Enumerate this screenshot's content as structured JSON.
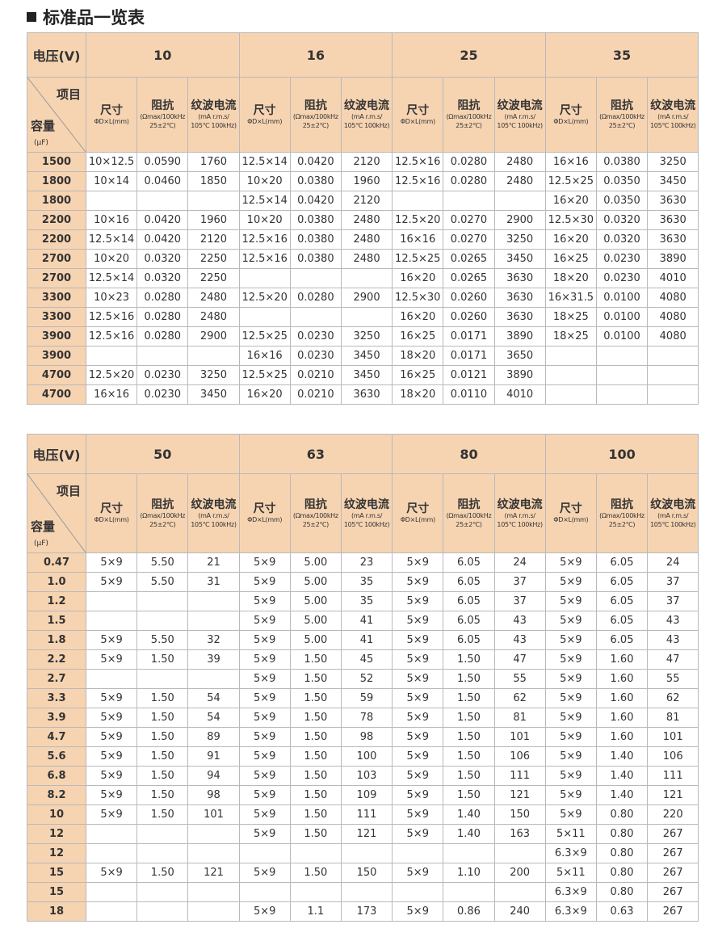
{
  "title": "标准品一览表",
  "colors": {
    "header_bg": "#f6d4b2",
    "border": "#b9b9b9"
  },
  "header": {
    "voltage_label": "电压(V)",
    "item_label": "项目",
    "capacity_label": "容量",
    "capacity_unit": "(μF)",
    "size_label": "尺寸",
    "size_unit": "ΦD×L(mm)",
    "impedance_label": "阻抗",
    "impedance_unit1": "(Ωmax/100kHz",
    "impedance_unit2": "25±2℃)",
    "ripple_label": "纹波电流",
    "ripple_unit1": "(mA r.m.s/",
    "ripple_unit2": "105℃ 100kHz)"
  },
  "tables": [
    {
      "voltages": [
        "10",
        "16",
        "25",
        "35"
      ],
      "rows": [
        [
          "1500",
          [
            "10×12.5",
            "0.0590",
            "1760",
            "12.5×14",
            "0.0420",
            "2120",
            "12.5×16",
            "0.0280",
            "2480",
            "16×16",
            "0.0380",
            "3250"
          ]
        ],
        [
          "1800",
          [
            "10×14",
            "0.0460",
            "1850",
            "10×20",
            "0.0380",
            "1960",
            "12.5×16",
            "0.0280",
            "2480",
            "12.5×25",
            "0.0350",
            "3450"
          ]
        ],
        [
          "1800",
          [
            "",
            "",
            "",
            "12.5×14",
            "0.0420",
            "2120",
            "",
            "",
            "",
            "16×20",
            "0.0350",
            "3630"
          ]
        ],
        [
          "2200",
          [
            "10×16",
            "0.0420",
            "1960",
            "10×20",
            "0.0380",
            "2480",
            "12.5×20",
            "0.0270",
            "2900",
            "12.5×30",
            "0.0320",
            "3630"
          ]
        ],
        [
          "2200",
          [
            "12.5×14",
            "0.0420",
            "2120",
            "12.5×16",
            "0.0380",
            "2480",
            "16×16",
            "0.0270",
            "3250",
            "16×20",
            "0.0320",
            "3630"
          ]
        ],
        [
          "2700",
          [
            "10×20",
            "0.0320",
            "2250",
            "12.5×16",
            "0.0380",
            "2480",
            "12.5×25",
            "0.0265",
            "3450",
            "16×25",
            "0.0230",
            "3890"
          ]
        ],
        [
          "2700",
          [
            "12.5×14",
            "0.0320",
            "2250",
            "",
            "",
            "",
            "16×20",
            "0.0265",
            "3630",
            "18×20",
            "0.0230",
            "4010"
          ]
        ],
        [
          "3300",
          [
            "10×23",
            "0.0280",
            "2480",
            "12.5×20",
            "0.0280",
            "2900",
            "12.5×30",
            "0.0260",
            "3630",
            "16×31.5",
            "0.0100",
            "4080"
          ]
        ],
        [
          "3300",
          [
            "12.5×16",
            "0.0280",
            "2480",
            "",
            "",
            "",
            "16×20",
            "0.0260",
            "3630",
            "18×25",
            "0.0100",
            "4080"
          ]
        ],
        [
          "3900",
          [
            "12.5×16",
            "0.0280",
            "2900",
            "12.5×25",
            "0.0230",
            "3250",
            "16×25",
            "0.0171",
            "3890",
            "18×25",
            "0.0100",
            "4080"
          ]
        ],
        [
          "3900",
          [
            "",
            "",
            "",
            "16×16",
            "0.0230",
            "3450",
            "18×20",
            "0.0171",
            "3650",
            "",
            "",
            ""
          ]
        ],
        [
          "4700",
          [
            "12.5×20",
            "0.0230",
            "3250",
            "12.5×25",
            "0.0210",
            "3450",
            "16×25",
            "0.0121",
            "3890",
            "",
            "",
            ""
          ]
        ],
        [
          "4700",
          [
            "16×16",
            "0.0230",
            "3450",
            "16×20",
            "0.0210",
            "3630",
            "18×20",
            "0.0110",
            "4010",
            "",
            "",
            ""
          ]
        ]
      ]
    },
    {
      "voltages": [
        "50",
        "63",
        "80",
        "100"
      ],
      "rows": [
        [
          "0.47",
          [
            "5×9",
            "5.50",
            "21",
            "5×9",
            "5.00",
            "23",
            "5×9",
            "6.05",
            "24",
            "5×9",
            "6.05",
            "24"
          ]
        ],
        [
          "1.0",
          [
            "5×9",
            "5.50",
            "31",
            "5×9",
            "5.00",
            "35",
            "5×9",
            "6.05",
            "37",
            "5×9",
            "6.05",
            "37"
          ]
        ],
        [
          "1.2",
          [
            "",
            "",
            "",
            "5×9",
            "5.00",
            "35",
            "5×9",
            "6.05",
            "37",
            "5×9",
            "6.05",
            "37"
          ]
        ],
        [
          "1.5",
          [
            "",
            "",
            "",
            "5×9",
            "5.00",
            "41",
            "5×9",
            "6.05",
            "43",
            "5×9",
            "6.05",
            "43"
          ]
        ],
        [
          "1.8",
          [
            "5×9",
            "5.50",
            "32",
            "5×9",
            "5.00",
            "41",
            "5×9",
            "6.05",
            "43",
            "5×9",
            "6.05",
            "43"
          ]
        ],
        [
          "2.2",
          [
            "5×9",
            "1.50",
            "39",
            "5×9",
            "1.50",
            "45",
            "5×9",
            "1.50",
            "47",
            "5×9",
            "1.60",
            "47"
          ]
        ],
        [
          "2.7",
          [
            "",
            "",
            "",
            "5×9",
            "1.50",
            "52",
            "5×9",
            "1.50",
            "55",
            "5×9",
            "1.60",
            "55"
          ]
        ],
        [
          "3.3",
          [
            "5×9",
            "1.50",
            "54",
            "5×9",
            "1.50",
            "59",
            "5×9",
            "1.50",
            "62",
            "5×9",
            "1.60",
            "62"
          ]
        ],
        [
          "3.9",
          [
            "5×9",
            "1.50",
            "54",
            "5×9",
            "1.50",
            "78",
            "5×9",
            "1.50",
            "81",
            "5×9",
            "1.60",
            "81"
          ]
        ],
        [
          "4.7",
          [
            "5×9",
            "1.50",
            "89",
            "5×9",
            "1.50",
            "98",
            "5×9",
            "1.50",
            "101",
            "5×9",
            "1.60",
            "101"
          ]
        ],
        [
          "5.6",
          [
            "5×9",
            "1.50",
            "91",
            "5×9",
            "1.50",
            "100",
            "5×9",
            "1.50",
            "106",
            "5×9",
            "1.40",
            "106"
          ]
        ],
        [
          "6.8",
          [
            "5×9",
            "1.50",
            "94",
            "5×9",
            "1.50",
            "103",
            "5×9",
            "1.50",
            "111",
            "5×9",
            "1.40",
            "111"
          ]
        ],
        [
          "8.2",
          [
            "5×9",
            "1.50",
            "98",
            "5×9",
            "1.50",
            "109",
            "5×9",
            "1.50",
            "121",
            "5×9",
            "1.40",
            "121"
          ]
        ],
        [
          "10",
          [
            "5×9",
            "1.50",
            "101",
            "5×9",
            "1.50",
            "111",
            "5×9",
            "1.40",
            "150",
            "5×9",
            "0.80",
            "220"
          ]
        ],
        [
          "12",
          [
            "",
            "",
            "",
            "5×9",
            "1.50",
            "121",
            "5×9",
            "1.40",
            "163",
            "5×11",
            "0.80",
            "267"
          ]
        ],
        [
          "12",
          [
            "",
            "",
            "",
            "",
            "",
            "",
            "",
            "",
            "",
            "6.3×9",
            "0.80",
            "267"
          ]
        ],
        [
          "15",
          [
            "5×9",
            "1.50",
            "121",
            "5×9",
            "1.50",
            "150",
            "5×9",
            "1.10",
            "200",
            "5×11",
            "0.80",
            "267"
          ]
        ],
        [
          "15",
          [
            "",
            "",
            "",
            "",
            "",
            "",
            "",
            "",
            "",
            "6.3×9",
            "0.80",
            "267"
          ]
        ],
        [
          "18",
          [
            "",
            "",
            "",
            "5×9",
            "1.1",
            "173",
            "5×9",
            "0.86",
            "240",
            "6.3×9",
            "0.63",
            "267"
          ]
        ]
      ]
    }
  ]
}
